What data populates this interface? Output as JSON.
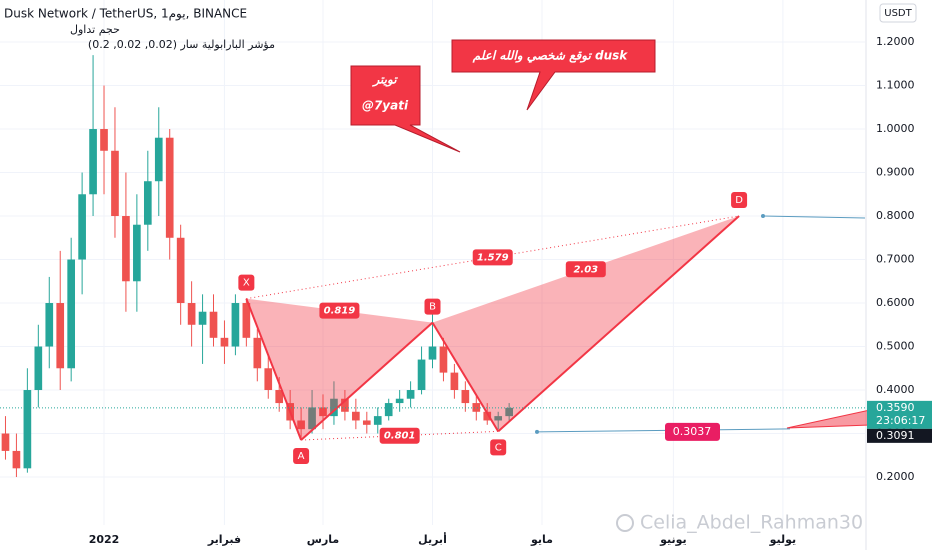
{
  "header": {
    "symbol": "Dusk Network / TetherUS, 1يوم, BINANCE",
    "volume": "حجم تداول",
    "sar": "مؤشر البارابولية سار (0.02, 0.02, 0.2)"
  },
  "currency": "USDT",
  "callout": "توقع شخصي والله اعلم dusk",
  "twitter": {
    "title": "تويتر",
    "handle": "@7yati"
  },
  "watermark": "Celia_Abdel_Rahman30",
  "chart_data": {
    "type": "candlestick",
    "categories": [
      null,
      null,
      null,
      null,
      null,
      null,
      null,
      null,
      null,
      "2022",
      null,
      null,
      null,
      null,
      null,
      null,
      null,
      null,
      null,
      null,
      "فبراير",
      null,
      null,
      null,
      null,
      null,
      null,
      null,
      null,
      "مارس",
      null,
      null,
      null,
      null,
      null,
      null,
      null,
      null,
      null,
      "أبريل",
      null,
      null,
      null,
      null,
      null,
      null,
      null,
      null,
      null,
      "مايو",
      null,
      null,
      null,
      null,
      null,
      null,
      null,
      null,
      null,
      null,
      null,
      "يونيو",
      null,
      null,
      null,
      null,
      null,
      null,
      null,
      null,
      null,
      "يوليو",
      null,
      null,
      null,
      null,
      null,
      null,
      null
    ],
    "open": [
      0.3,
      0.26,
      0.22,
      0.4,
      0.5,
      0.6,
      0.45,
      0.7,
      0.85,
      1.0,
      0.95,
      0.8,
      0.65,
      0.78,
      0.88,
      0.98,
      0.75,
      0.6,
      0.55,
      0.58,
      0.52,
      0.5,
      0.6,
      0.52,
      0.45,
      0.4,
      0.37,
      0.33,
      0.31,
      0.36,
      0.34,
      0.38,
      0.35,
      0.33,
      0.32,
      0.34,
      0.37,
      0.38,
      0.4,
      0.47,
      0.5,
      0.44,
      0.4,
      0.37,
      0.35,
      0.33,
      0.34,
      null,
      null,
      null,
      null,
      null,
      null,
      null,
      null,
      null,
      null,
      null,
      null,
      null,
      null,
      null,
      null,
      null,
      null,
      null,
      null,
      null,
      null,
      null,
      null,
      null,
      null,
      null,
      null,
      null,
      null,
      null,
      null
    ],
    "high": [
      0.34,
      0.3,
      0.45,
      0.55,
      0.66,
      0.72,
      0.75,
      0.9,
      1.17,
      1.1,
      1.05,
      0.9,
      0.85,
      0.95,
      1.05,
      1.0,
      0.78,
      0.65,
      0.62,
      0.62,
      0.56,
      0.62,
      0.61,
      0.54,
      0.48,
      0.43,
      0.4,
      0.36,
      0.4,
      0.39,
      0.42,
      0.4,
      0.38,
      0.35,
      0.36,
      0.38,
      0.4,
      0.42,
      0.5,
      0.58,
      0.52,
      0.46,
      0.42,
      0.39,
      0.37,
      0.35,
      0.37,
      null,
      null,
      null,
      null,
      null,
      null,
      null,
      null,
      null,
      null,
      null,
      null,
      null,
      null,
      null,
      null,
      null,
      null,
      null,
      null,
      null,
      null,
      null,
      null,
      null,
      null,
      null,
      null,
      null,
      null,
      null,
      null
    ],
    "low": [
      0.24,
      0.2,
      0.21,
      0.36,
      0.45,
      0.4,
      0.42,
      0.62,
      0.8,
      0.85,
      0.75,
      0.58,
      0.58,
      0.72,
      0.8,
      0.7,
      0.55,
      0.5,
      0.46,
      0.5,
      0.46,
      0.48,
      0.5,
      0.42,
      0.38,
      0.35,
      0.31,
      0.285,
      0.3,
      0.31,
      0.32,
      0.33,
      0.31,
      0.3,
      0.3,
      0.33,
      0.35,
      0.36,
      0.39,
      0.45,
      0.42,
      0.38,
      0.35,
      0.33,
      0.32,
      0.31,
      0.33,
      null,
      null,
      null,
      null,
      null,
      null,
      null,
      null,
      null,
      null,
      null,
      null,
      null,
      null,
      null,
      null,
      null,
      null,
      null,
      null,
      null,
      null,
      null,
      null,
      null,
      null,
      null,
      null,
      null,
      null,
      null,
      null
    ],
    "close": [
      0.26,
      0.22,
      0.4,
      0.5,
      0.6,
      0.45,
      0.7,
      0.85,
      1.0,
      0.95,
      0.8,
      0.65,
      0.78,
      0.88,
      0.98,
      0.75,
      0.6,
      0.55,
      0.58,
      0.52,
      0.5,
      0.6,
      0.52,
      0.45,
      0.4,
      0.37,
      0.33,
      0.31,
      0.36,
      0.34,
      0.38,
      0.35,
      0.33,
      0.32,
      0.34,
      0.37,
      0.38,
      0.4,
      0.47,
      0.5,
      0.44,
      0.4,
      0.37,
      0.35,
      0.33,
      0.34,
      0.359,
      null,
      null,
      null,
      null,
      null,
      null,
      null,
      null,
      null,
      null,
      null,
      null,
      null,
      null,
      null,
      null,
      null,
      null,
      null,
      null,
      null,
      null,
      null,
      null,
      null,
      null,
      null,
      null,
      null,
      null,
      null,
      null
    ],
    "up_color": "#26a69a",
    "down_color": "#ef5350",
    "ylim": [
      0.0897,
      1.2966
    ],
    "yticks": [
      {
        "value": 0.2,
        "label": "0.2000"
      },
      {
        "value": 0.3,
        "label": "0.3000"
      },
      {
        "value": 0.4,
        "label": "0.4000"
      },
      {
        "value": 0.5,
        "label": "0.5000"
      },
      {
        "value": 0.6,
        "label": "0.6000"
      },
      {
        "value": 0.7,
        "label": "0.7000"
      },
      {
        "value": 0.8,
        "label": "0.8000"
      },
      {
        "value": 0.9,
        "label": "0.9000"
      },
      {
        "value": 1.0,
        "label": "1.0000"
      },
      {
        "value": 1.1,
        "label": "1.1000"
      },
      {
        "value": 1.2,
        "label": "1.2000"
      }
    ],
    "grid": true,
    "last_price": {
      "value": 0.359,
      "label": "0.3590",
      "countdown": "23:06:17"
    },
    "low_tag": {
      "value": 0.3091,
      "label": "0.3091"
    },
    "target": 0.3037,
    "pattern": {
      "color": "#f23645",
      "points": [
        {
          "label": "X",
          "index": 22,
          "price": 0.61
        },
        {
          "label": "A",
          "index": 27,
          "price": 0.285
        },
        {
          "label": "B",
          "index": 39,
          "price": 0.555
        },
        {
          "label": "C",
          "index": 45,
          "price": 0.305
        },
        {
          "label": "D",
          "index": 67,
          "price": 0.8
        }
      ],
      "ratios": [
        0.819,
        1.579,
        2.03,
        0.801
      ]
    }
  }
}
